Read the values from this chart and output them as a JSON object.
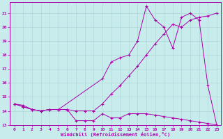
{
  "xlabel": "Windchill (Refroidissement éolien,°C)",
  "background_color": "#c8ecec",
  "grid_color": "#b0d8d8",
  "line_color": "#aa00aa",
  "xlim": [
    -0.5,
    23.5
  ],
  "ylim": [
    13,
    21.8
  ],
  "yticks": [
    13,
    14,
    15,
    16,
    17,
    18,
    19,
    20,
    21
  ],
  "xticks": [
    0,
    1,
    2,
    3,
    4,
    5,
    6,
    7,
    8,
    9,
    10,
    11,
    12,
    13,
    14,
    15,
    16,
    17,
    18,
    19,
    20,
    21,
    22,
    23
  ],
  "line1_x": [
    0,
    1,
    2,
    3,
    4,
    5,
    6,
    7,
    8,
    9,
    10,
    11,
    12,
    13,
    14,
    15,
    16,
    17,
    18,
    19,
    20,
    21,
    22,
    23
  ],
  "line1_y": [
    14.5,
    14.4,
    14.1,
    14.0,
    14.1,
    14.1,
    14.1,
    13.3,
    13.3,
    13.3,
    13.8,
    13.5,
    13.5,
    13.8,
    13.8,
    13.8,
    13.7,
    13.6,
    13.5,
    13.4,
    13.3,
    13.2,
    13.1,
    13.0
  ],
  "line2_x": [
    0,
    1,
    2,
    3,
    4,
    5,
    6,
    7,
    8,
    9,
    10,
    11,
    12,
    13,
    14,
    15,
    16,
    17,
    18,
    19,
    20,
    21,
    22,
    23
  ],
  "line2_y": [
    14.5,
    14.3,
    14.1,
    14.0,
    14.1,
    14.1,
    14.1,
    14.0,
    14.0,
    14.0,
    14.5,
    15.2,
    15.8,
    16.5,
    17.2,
    18.0,
    18.8,
    19.5,
    20.2,
    20.0,
    20.5,
    20.7,
    20.8,
    21.0
  ],
  "line3_x": [
    0,
    1,
    2,
    3,
    4,
    5,
    10,
    11,
    12,
    13,
    14,
    15,
    16,
    17,
    18,
    19,
    20,
    21,
    22,
    23
  ],
  "line3_y": [
    14.5,
    14.3,
    14.1,
    14.0,
    14.1,
    14.1,
    16.3,
    17.5,
    17.8,
    18.0,
    19.0,
    21.5,
    20.5,
    20.0,
    18.5,
    20.7,
    21.0,
    20.5,
    15.8,
    13.0
  ]
}
